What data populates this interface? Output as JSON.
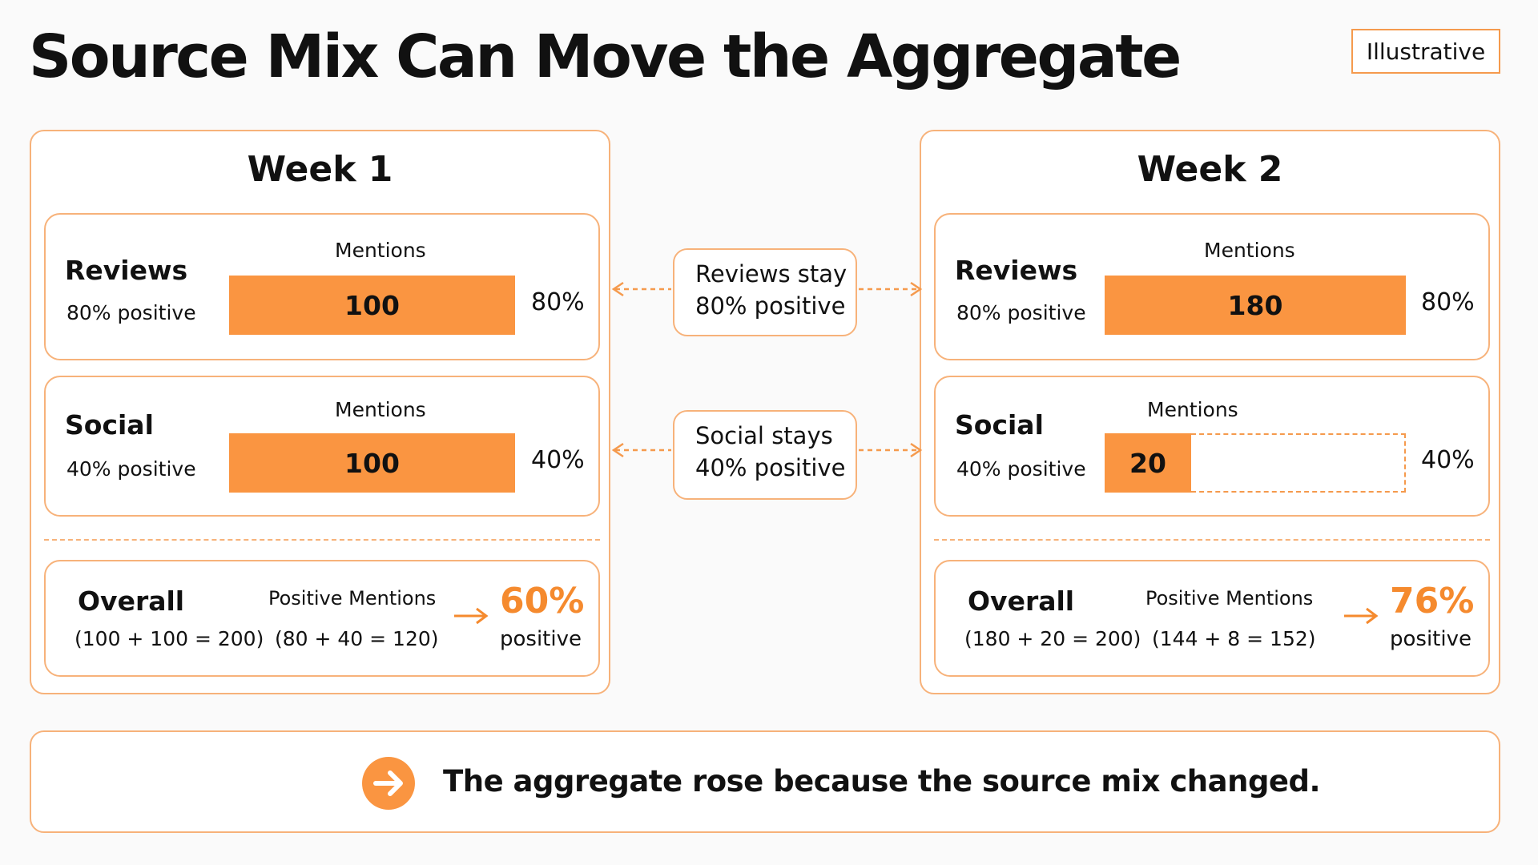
{
  "title": "Source Mix Can Move the Aggregate",
  "badge": "Illustrative",
  "colors": {
    "accent": "#fa9541",
    "border": "#f7b27a",
    "highlight": "#f58a2e"
  },
  "week1": {
    "title": "Week 1",
    "reviews": {
      "name": "Reviews",
      "positive": "80% positive",
      "mentions_label": "Mentions",
      "value": "100",
      "share": 0.5,
      "pct": "80%"
    },
    "social": {
      "name": "Social",
      "positive": "40% positive",
      "mentions_label": "Mentions",
      "value": "100",
      "share": 0.5,
      "pct": "40%"
    },
    "overall": {
      "name": "Overall",
      "total": "(100 + 100 = 200)",
      "pm_label": "Positive Mentions",
      "pm_calc": "(80 + 40 = 120)",
      "value": "60%",
      "word": "positive"
    }
  },
  "week2": {
    "title": "Week 2",
    "reviews": {
      "name": "Reviews",
      "positive": "80% positive",
      "mentions_label": "Mentions",
      "value": "180",
      "share": 0.9,
      "pct": "80%"
    },
    "social": {
      "name": "Social",
      "positive": "40% positive",
      "mentions_label": "Mentions",
      "value": "20",
      "share": 0.1,
      "pct": "40%"
    },
    "overall": {
      "name": "Overall",
      "total": "(180 + 20 = 200)",
      "pm_label": "Positive Mentions",
      "pm_calc": "(144 + 8 = 152)",
      "value": "76%",
      "word": "positive"
    }
  },
  "middle": {
    "reviews_line1": "Reviews stay",
    "reviews_line2": "80% positive",
    "social_line1": "Social stays",
    "social_line2": "40% positive"
  },
  "footer": {
    "text": "The aggregate rose because the source mix changed.",
    "icon": "arrow-right-circle-icon"
  }
}
